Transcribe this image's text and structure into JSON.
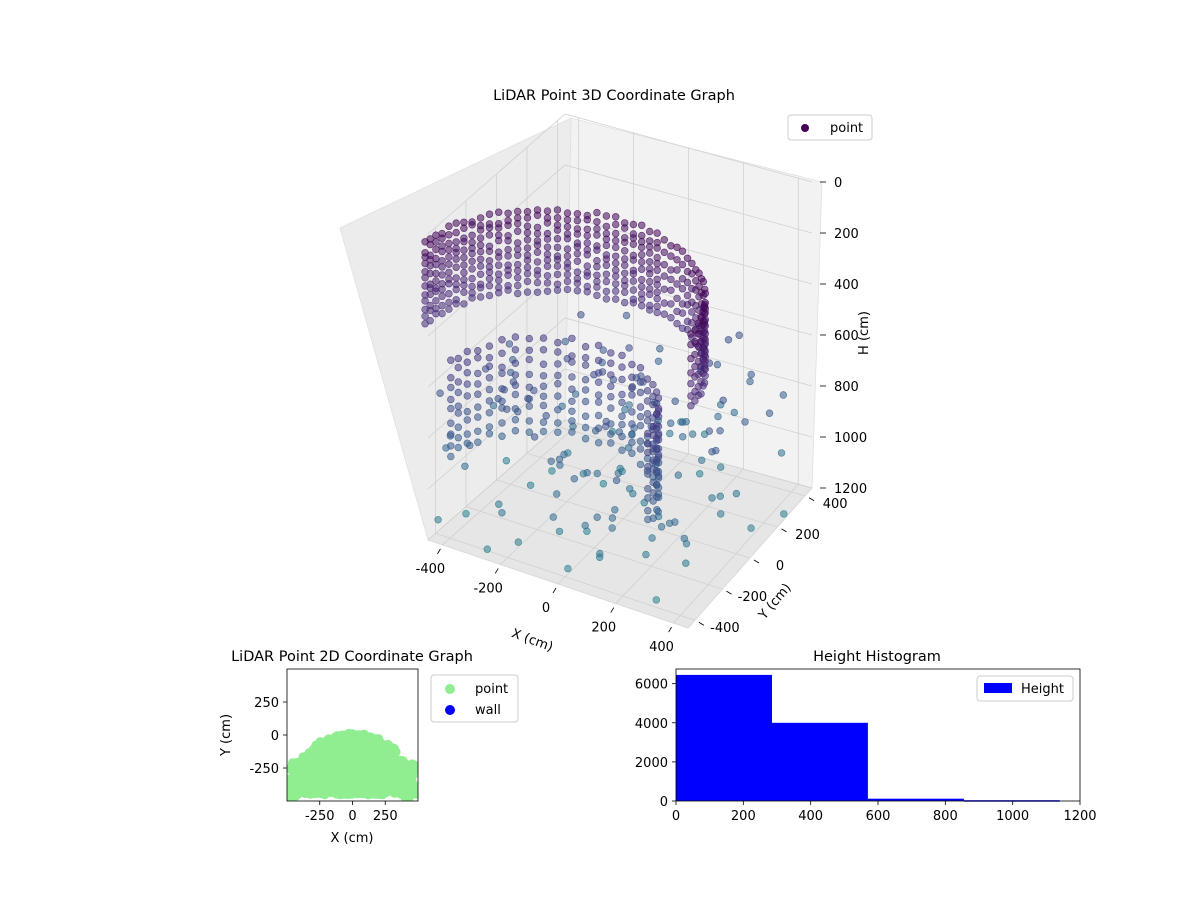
{
  "chart_data": [
    {
      "type": "scatter",
      "title": "LiDAR Point 3D Coordinate Graph",
      "xlabel": "X (cm)",
      "ylabel": "Y (cm)",
      "zlabel": "H (cm)",
      "x_ticks": [
        "-400",
        "-200",
        "0",
        "200",
        "400"
      ],
      "y_ticks": [
        "-400",
        "-200",
        "0",
        "200",
        "400"
      ],
      "z_ticks": [
        "0",
        "200",
        "400",
        "600",
        "800",
        "1000",
        "1200"
      ],
      "xlim": [
        -450,
        450
      ],
      "ylim": [
        -450,
        450
      ],
      "zlim": [
        1200,
        0
      ],
      "z_inverted": true,
      "colormap": "viridis",
      "legend": {
        "label": "point",
        "color": "#440154",
        "placement": "top-right"
      },
      "grid": true,
      "shape": {
        "arc_center_xy": [
          0,
          -450
        ],
        "arc_radius": 460,
        "wall_height_range": [
          0,
          400
        ],
        "lower_band_height_range": [
          400,
          800
        ],
        "scattered_height_range": [
          600,
          1200
        ]
      }
    },
    {
      "type": "scatter",
      "title": "LiDAR Point 2D Coordinate Graph",
      "xlabel": "X (cm)",
      "ylabel": "Y (cm)",
      "x_ticks": [
        "-250",
        "0",
        "250"
      ],
      "y_ticks": [
        "250",
        "0",
        "-250"
      ],
      "xlim": [
        -500,
        500
      ],
      "ylim": [
        -500,
        500
      ],
      "series": [
        {
          "name": "point",
          "color": "#90ee90"
        },
        {
          "name": "wall",
          "color": "#0000ff"
        }
      ],
      "legend_placement": "outside right",
      "grid": false
    },
    {
      "type": "bar",
      "title": "Height Histogram",
      "series_name": "Height",
      "color": "#0000ff",
      "bins": [
        0,
        285,
        570,
        855,
        1140,
        1200
      ],
      "counts": [
        6450,
        4000,
        120,
        40,
        0
      ],
      "x_ticks": [
        "0",
        "200",
        "400",
        "600",
        "800",
        "1000",
        "1200"
      ],
      "y_ticks": [
        "0",
        "2000",
        "4000",
        "6000"
      ],
      "xlim": [
        0,
        1200
      ],
      "ylim": [
        0,
        6750
      ],
      "legend_placement": "top-right",
      "grid": false
    }
  ]
}
